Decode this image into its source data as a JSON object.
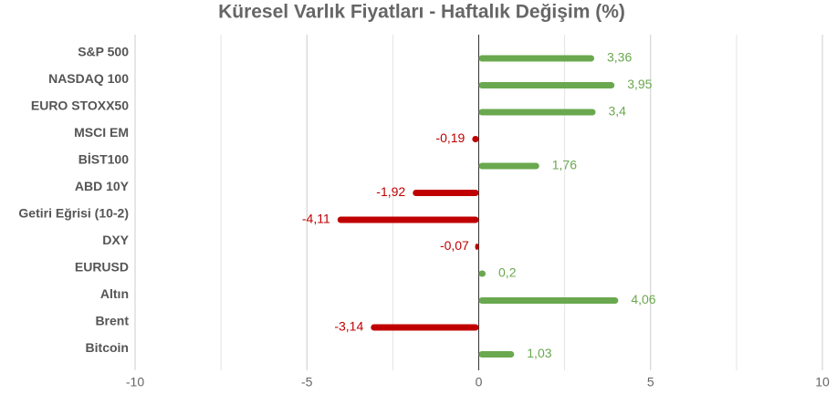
{
  "chart_data": {
    "type": "hbar",
    "title": "Küresel Varlık Fiyatları - Haftalık Değişim (%)",
    "categories": [
      "S&P 500",
      "NASDAQ 100",
      "EURO STOXX50",
      "MSCI EM",
      "BİST100",
      "ABD 10Y",
      "Getiri Eğrisi (10-2)",
      "DXY",
      "EURUSD",
      "Altın",
      "Brent",
      "Bitcoin"
    ],
    "values": [
      3.36,
      3.95,
      3.4,
      -0.19,
      1.76,
      -1.92,
      -4.11,
      -0.07,
      0.2,
      4.06,
      -3.14,
      1.03
    ],
    "value_labels": [
      "3,36",
      "3,95",
      "3,4",
      "-0,19",
      "1,76",
      "-1,92",
      "-4,11",
      "-0,07",
      "0,2",
      "4,06",
      "-3,14",
      "1,03"
    ],
    "positive_color": "#6aa84f",
    "negative_color": "#c00000",
    "xlim": [
      -10,
      10
    ],
    "xticks": [
      -10,
      -5,
      0,
      5,
      10
    ],
    "xminor": [
      -7.5,
      -2.5,
      2.5,
      7.5
    ],
    "grid": true
  }
}
